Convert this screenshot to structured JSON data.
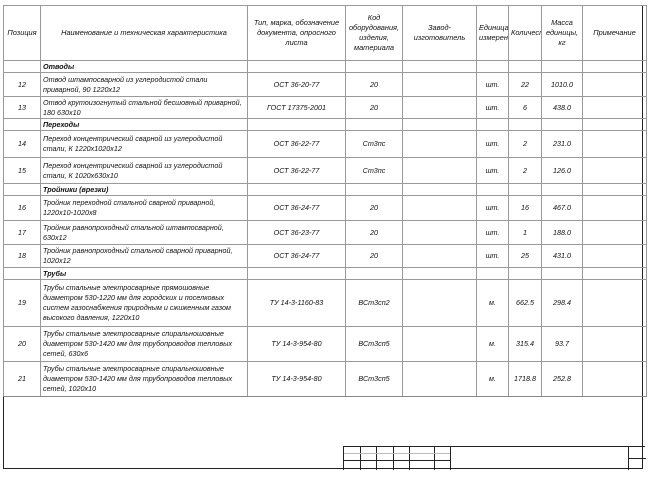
{
  "headers": {
    "position": "Позиция",
    "name": "Наименование и техническая характеристика",
    "type": "Тип, марка, обозначение документа, опросного листа",
    "code": "Код оборудования, изделия, материала",
    "manufacturer": "Завод-изготовитель",
    "unit": "Единица измерения",
    "qty": "Количество",
    "mass": "Масса единицы, кг",
    "note": "Примечание"
  },
  "sections": [
    {
      "title": "Отводы",
      "rows": [
        {
          "pos": "12",
          "name": "Отвод штампосварной из углеродистой стали приварной, 90 1220x12",
          "type": "ОСТ 36-20-77",
          "code": "20",
          "unit": "шт.",
          "qty": "22",
          "mass": "1010.0"
        },
        {
          "pos": "13",
          "name": "Отвод крутоизогнутый стальной бесшовный приварной, 180 630x10",
          "type": "ГОСТ 17375-2001",
          "code": "20",
          "unit": "шт.",
          "qty": "6",
          "mass": "438.0"
        }
      ]
    },
    {
      "title": "Переходы",
      "rows": [
        {
          "pos": "14",
          "name": "Переход концентрический сварной из углеродистой стали, К 1220x1020x12",
          "type": "ОСТ 36-22-77",
          "code": "Ст3пс",
          "unit": "шт.",
          "qty": "2",
          "mass": "231.0"
        },
        {
          "pos": "15",
          "name": "Переход концентрический сварной из углеродистой стали, К 1020x630x10",
          "type": "ОСТ 36-22-77",
          "code": "Ст3пс",
          "unit": "шт.",
          "qty": "2",
          "mass": "126.0"
        }
      ]
    },
    {
      "title": "Тройники (врезки)",
      "rows": [
        {
          "pos": "16",
          "name": "Тройник переходной стальной сварной приварной, 1220x10-1020x8",
          "type": "ОСТ 36-24-77",
          "code": "20",
          "unit": "шт.",
          "qty": "16",
          "mass": "467.0"
        },
        {
          "pos": "17",
          "name": "Тройник равнопроходный стальной штампосварной, 630x12",
          "type": "ОСТ 36-23-77",
          "code": "20",
          "unit": "шт.",
          "qty": "1",
          "mass": "188.0"
        },
        {
          "pos": "18",
          "name": "Тройник равнопроходный стальной сварной приварной, 1020x12",
          "type": "ОСТ 36-24-77",
          "code": "20",
          "unit": "шт.",
          "qty": "25",
          "mass": "431.0"
        }
      ]
    },
    {
      "title": "Трубы",
      "rows": [
        {
          "pos": "19",
          "name": "Трубы стальные электросварные прямошовные диаметром 530-1220 мм для городских и поселковых систем газоснабжения природным и сжиженным газом высокого давления, 1220x10",
          "type": "ТУ 14-3-1160-83",
          "code": "ВСт3сп2",
          "unit": "м.",
          "qty": "662.5",
          "mass": "298.4"
        },
        {
          "pos": "20",
          "name": "Трубы стальные электросварные спиральношовные диаметром 530-1420 мм для трубопроводов тепловых сетей, 630x6",
          "type": "ТУ 14-3-954-80",
          "code": "ВСт3сп5",
          "unit": "м.",
          "qty": "315.4",
          "mass": "93.7"
        },
        {
          "pos": "21",
          "name": "Трубы стальные электросварные спиральношовные диаметром 530-1420 мм для трубопроводов тепловых сетей, 1020x10",
          "type": "ТУ 14-3-954-80",
          "code": "ВСт3сп5",
          "unit": "м.",
          "qty": "1718.8",
          "mass": "252.8"
        }
      ]
    }
  ]
}
